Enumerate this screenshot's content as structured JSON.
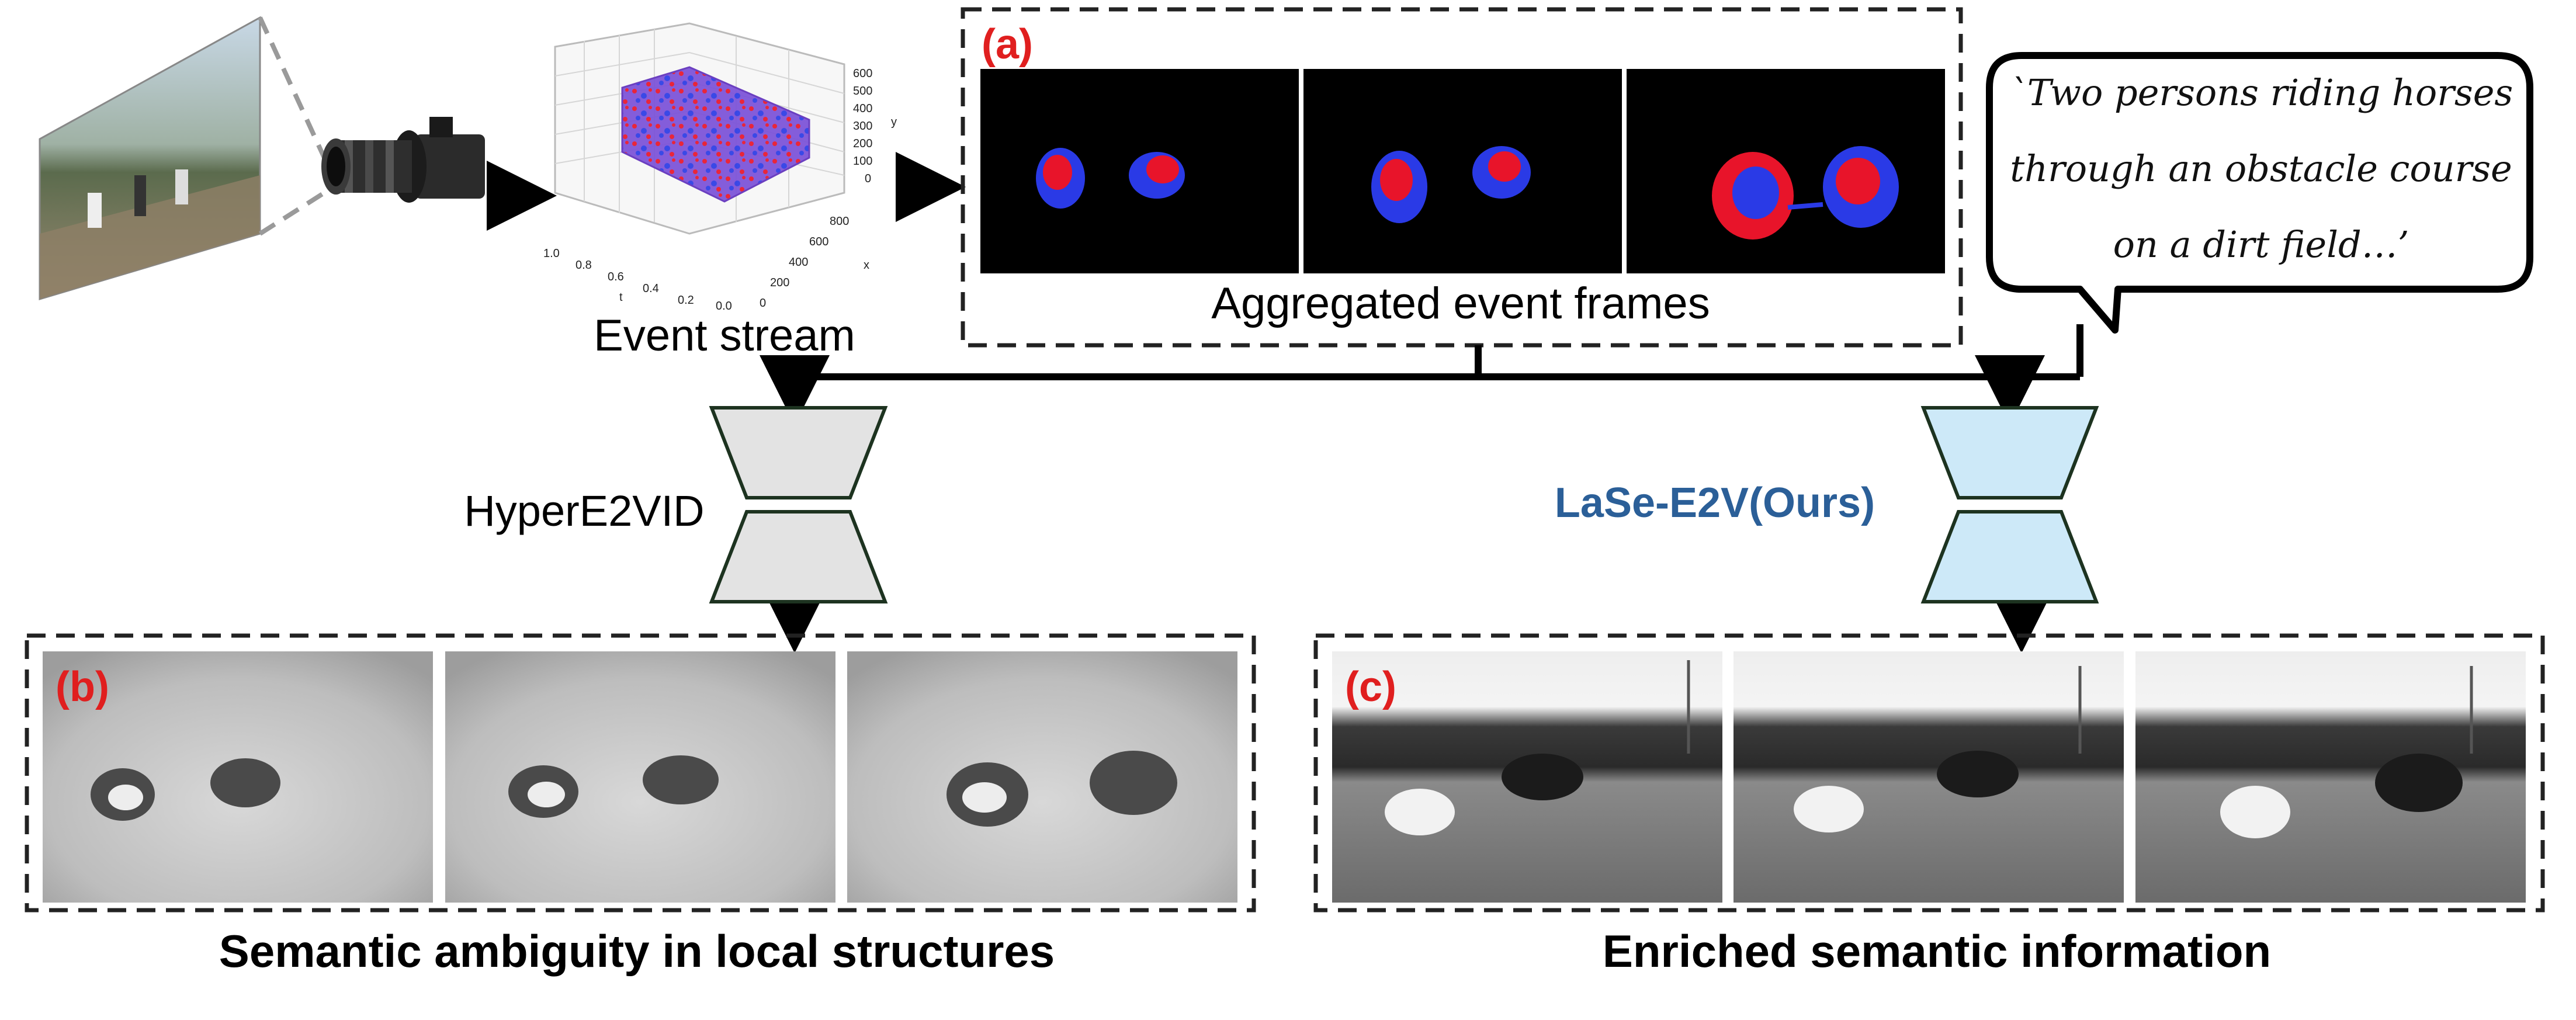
{
  "panels": {
    "a": {
      "tag": "(a)",
      "caption": "Aggregated event frames"
    },
    "b": {
      "tag": "(b)",
      "caption": "Semantic ambiguity in local structures"
    },
    "c": {
      "tag": "(c)",
      "caption": "Enriched semantic information"
    }
  },
  "event_stream": {
    "caption": "Event stream",
    "y_ticks": [
      "600",
      "500",
      "400",
      "300",
      "200",
      "100",
      "0"
    ],
    "y_label": "y",
    "x_ticks": [
      "800",
      "600",
      "400",
      "200",
      "0"
    ],
    "x_label": "x",
    "t_ticks": [
      "1.0",
      "0.8",
      "0.6",
      "0.4",
      "0.2",
      "0.0"
    ],
    "t_label": "t"
  },
  "models": {
    "baseline": "HyperE2VID",
    "ours": "LaSe-E2V(Ours)"
  },
  "text_prompt": {
    "lines": [
      "`Two persons riding horses",
      "through an obstacle course",
      "on a dirt field…’"
    ]
  },
  "colors": {
    "accent_red": "#e01f1f",
    "ours_blue": "#2b5f98",
    "encoder_gray": "#e3e3e3",
    "encoder_blue": "#cde9f8",
    "event_pos": "#e8142a",
    "event_neg": "#1f2ae6"
  },
  "icons": [
    "camera-icon",
    "arrow-icon"
  ]
}
